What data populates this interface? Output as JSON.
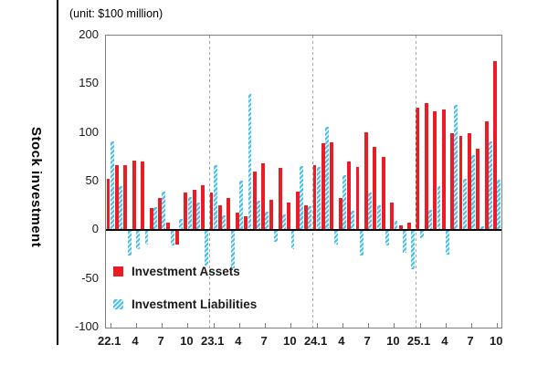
{
  "unit_label": "(unit: $100 million)",
  "y_axis_title": "Stock investment",
  "legend": [
    {
      "label": "Investment Assets"
    },
    {
      "label": "Investment Liabilities"
    }
  ],
  "colors": {
    "assets": "#ed1c24",
    "liabilities": "#50c2e8",
    "year_gridline": "#a6a6a6",
    "zero_line": "#000000",
    "plot_border": "#7f7f7f"
  },
  "chart_data": {
    "type": "bar",
    "title": "Stock investment",
    "unit": "(unit: $100 million)",
    "ylim": [
      -100,
      200
    ],
    "y_ticks": [
      200,
      150,
      100,
      50,
      0,
      -50,
      -100
    ],
    "grid": "vertical dashed lines at year boundaries only",
    "legend_position": "inside bottom-left",
    "x_tick_labels": [
      "22.1",
      "4",
      "7",
      "10",
      "23.1",
      "4",
      "7",
      "10",
      "24.1",
      "4",
      "7",
      "10",
      "25.1",
      "4",
      "7",
      "10"
    ],
    "x_tick_month_indices": [
      0,
      3,
      6,
      9,
      12,
      15,
      18,
      21,
      24,
      27,
      30,
      33,
      36,
      39,
      42,
      45
    ],
    "year_divider_month_indices": [
      12,
      24,
      36
    ],
    "months": [
      "22.1",
      "22.2",
      "22.3",
      "22.4",
      "22.5",
      "22.6",
      "22.7",
      "22.8",
      "22.9",
      "22.10",
      "22.11",
      "22.12",
      "23.1",
      "23.2",
      "23.3",
      "23.4",
      "23.5",
      "23.6",
      "23.7",
      "23.8",
      "23.9",
      "23.10",
      "23.11",
      "23.12",
      "24.1",
      "24.2",
      "24.3",
      "24.4",
      "24.5",
      "24.6",
      "24.7",
      "24.8",
      "24.9",
      "24.10",
      "24.11",
      "24.12",
      "25.1",
      "25.2",
      "25.3",
      "25.4",
      "25.5",
      "25.6",
      "25.7",
      "25.8",
      "25.9",
      "25.10"
    ],
    "series": [
      {
        "name": "Investment Assets",
        "values": [
          53,
          67,
          67,
          72,
          71,
          23,
          33,
          8,
          -15,
          39,
          42,
          46,
          39,
          26,
          33,
          18,
          14,
          60,
          69,
          31,
          64,
          28,
          40,
          26,
          67,
          89,
          90,
          33,
          71,
          65,
          101,
          86,
          75,
          28,
          5,
          8,
          126,
          131,
          122,
          124,
          100,
          97,
          100,
          84,
          112,
          174
        ]
      },
      {
        "name": "Investment Liabilities",
        "values": [
          91,
          45,
          -26,
          -19,
          -15,
          24,
          40,
          -16,
          12,
          34,
          28,
          -36,
          67,
          15,
          -39,
          51,
          140,
          30,
          19,
          -12,
          16,
          -19,
          66,
          25,
          65,
          106,
          -15,
          57,
          20,
          -26,
          39,
          26,
          -16,
          10,
          -23,
          -40,
          -8,
          21,
          45,
          -25,
          129,
          53,
          77,
          4,
          91,
          52
        ]
      }
    ]
  }
}
